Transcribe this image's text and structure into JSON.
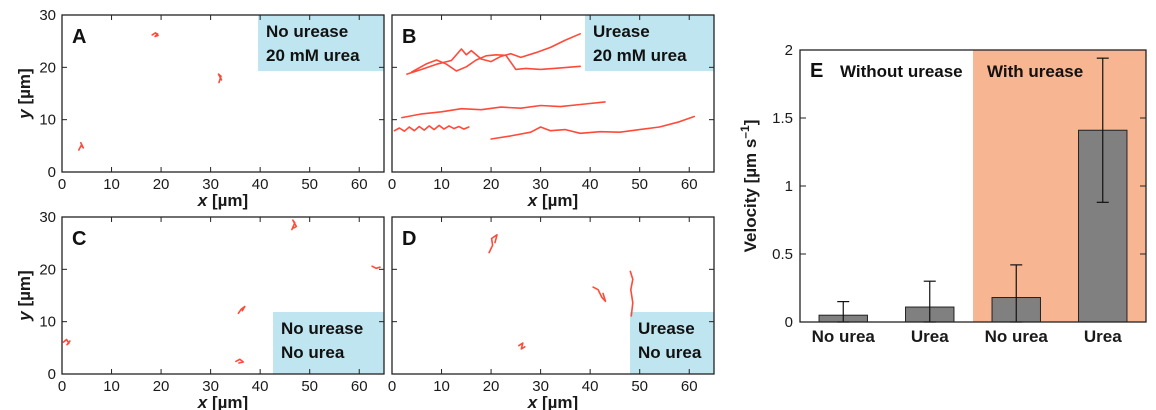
{
  "colors": {
    "trajectory": "#ff4a3a",
    "condition_box": "#bfe6f0",
    "with_urease_band": "#f8b592",
    "bar_fill": "#808080"
  },
  "chart_data": [
    {
      "id": "A",
      "type": "scatter",
      "panel_label": "A",
      "conditions": [
        "No urease",
        "20 mM urea"
      ],
      "xlabel_var": "x",
      "xlabel_unit": " [µm]",
      "ylabel_var": "y",
      "ylabel_unit": " [µm]",
      "show_xlabel": true,
      "show_ylabel": true,
      "xlim": [
        0,
        65
      ],
      "ylim": [
        0,
        30
      ],
      "xticks": [
        0,
        10,
        20,
        30,
        40,
        50,
        60
      ],
      "yticks": [
        0,
        10,
        20,
        30
      ],
      "tracks": [
        [
          [
            18.2,
            26.2
          ],
          [
            18.9,
            26.6
          ],
          [
            19.4,
            26.1
          ],
          [
            18.8,
            25.9
          ],
          [
            19.3,
            26.4
          ]
        ],
        [
          [
            31.7,
            17.1
          ],
          [
            32.1,
            18.3
          ],
          [
            31.6,
            18.7
          ],
          [
            32.2,
            17.6
          ],
          [
            31.9,
            18.1
          ]
        ],
        [
          [
            3.4,
            4.2
          ],
          [
            3.9,
            5.1
          ],
          [
            4.3,
            4.6
          ],
          [
            3.8,
            5.6
          ],
          [
            4.1,
            4.9
          ]
        ]
      ]
    },
    {
      "id": "B",
      "type": "scatter",
      "panel_label": "B",
      "conditions": [
        "Urease",
        "20 mM urea"
      ],
      "xlabel_var": "x",
      "xlabel_unit": " [µm]",
      "show_xlabel": true,
      "show_ylabel": false,
      "xlim": [
        0,
        65
      ],
      "ylim": [
        0,
        30
      ],
      "xticks": [
        0,
        10,
        20,
        30,
        40,
        50,
        60
      ],
      "yticks": [
        0,
        10,
        20,
        30
      ],
      "tracks": [
        [
          [
            3,
            18.7
          ],
          [
            6,
            19.6
          ],
          [
            9,
            20.6
          ],
          [
            12,
            21.3
          ],
          [
            14,
            23.5
          ],
          [
            15,
            22.4
          ],
          [
            16,
            23.2
          ],
          [
            18,
            21.6
          ],
          [
            20,
            21.1
          ],
          [
            22,
            22.1
          ],
          [
            24,
            22.6
          ],
          [
            26,
            21.9
          ],
          [
            29,
            22.8
          ],
          [
            32,
            23.8
          ],
          [
            35,
            25.2
          ],
          [
            38,
            26.4
          ]
        ],
        [
          [
            4,
            19.1
          ],
          [
            7,
            20.7
          ],
          [
            9,
            21.4
          ],
          [
            11,
            20.6
          ],
          [
            13,
            19.3
          ],
          [
            15,
            20.1
          ],
          [
            17,
            21.4
          ],
          [
            19,
            22.2
          ],
          [
            21,
            22.4
          ],
          [
            23,
            22.3
          ],
          [
            25,
            19.6
          ],
          [
            27,
            19.8
          ],
          [
            30,
            19.6
          ],
          [
            34,
            19.9
          ],
          [
            38,
            20.2
          ]
        ],
        [
          [
            2,
            10.4
          ],
          [
            6,
            11.1
          ],
          [
            10,
            11.5
          ],
          [
            14,
            12.1
          ],
          [
            18,
            11.9
          ],
          [
            22,
            12.4
          ],
          [
            26,
            12.2
          ],
          [
            30,
            12.7
          ],
          [
            34,
            12.5
          ],
          [
            38,
            12.9
          ],
          [
            43,
            13.4
          ]
        ],
        [
          [
            0.5,
            7.9
          ],
          [
            1.5,
            8.4
          ],
          [
            2.5,
            7.8
          ],
          [
            3.5,
            8.6
          ],
          [
            4.5,
            7.9
          ],
          [
            5.5,
            8.7
          ],
          [
            6.5,
            8.0
          ],
          [
            7.5,
            8.8
          ],
          [
            8.5,
            8.1
          ],
          [
            9.5,
            8.9
          ],
          [
            10.5,
            8.2
          ],
          [
            11.5,
            8.8
          ],
          [
            12.5,
            8.3
          ],
          [
            13.5,
            8.7
          ],
          [
            14.5,
            8.2
          ],
          [
            15.5,
            8.6
          ]
        ],
        [
          [
            20,
            6.3
          ],
          [
            24,
            6.9
          ],
          [
            28,
            7.6
          ],
          [
            30,
            8.6
          ],
          [
            32,
            7.9
          ],
          [
            35,
            8.1
          ],
          [
            38,
            7.4
          ],
          [
            42,
            7.7
          ],
          [
            46,
            7.6
          ],
          [
            50,
            8.1
          ],
          [
            54,
            8.6
          ],
          [
            58,
            9.6
          ],
          [
            61,
            10.6
          ]
        ]
      ]
    },
    {
      "id": "C",
      "type": "scatter",
      "panel_label": "C",
      "conditions": [
        "No urease",
        "No urea"
      ],
      "xlabel_var": "x",
      "xlabel_unit": " [µm]",
      "ylabel_var": "y",
      "ylabel_unit": " [µm]",
      "show_xlabel": true,
      "show_ylabel": true,
      "xlim": [
        0,
        65
      ],
      "ylim": [
        0,
        30
      ],
      "xticks": [
        0,
        10,
        20,
        30,
        40,
        50,
        60
      ],
      "yticks": [
        0,
        10,
        20,
        30
      ],
      "tracks": [
        [
          [
            0.3,
            6.1
          ],
          [
            0.9,
            6.6
          ],
          [
            1.4,
            5.9
          ],
          [
            1.0,
            5.6
          ],
          [
            1.6,
            6.3
          ]
        ],
        [
          [
            35.6,
            11.6
          ],
          [
            36.2,
            12.4
          ],
          [
            36.9,
            12.9
          ],
          [
            36.4,
            12.1
          ]
        ],
        [
          [
            35.1,
            2.4
          ],
          [
            35.9,
            2.8
          ],
          [
            36.6,
            2.3
          ],
          [
            35.7,
            2.1
          ]
        ],
        [
          [
            46.4,
            27.6
          ],
          [
            47.0,
            28.9
          ],
          [
            46.6,
            29.4
          ],
          [
            47.3,
            28.2
          ],
          [
            46.8,
            27.9
          ]
        ],
        [
          [
            62.6,
            20.6
          ],
          [
            63.4,
            20.2
          ],
          [
            64.2,
            20.4
          ]
        ]
      ]
    },
    {
      "id": "D",
      "type": "scatter",
      "panel_label": "D",
      "conditions": [
        "Urease",
        "No urea"
      ],
      "xlabel_var": "x",
      "xlabel_unit": " [µm]",
      "show_xlabel": true,
      "show_ylabel": false,
      "xlim": [
        0,
        65
      ],
      "ylim": [
        0,
        30
      ],
      "xticks": [
        0,
        10,
        20,
        30,
        40,
        50,
        60
      ],
      "yticks": [
        0,
        10,
        20,
        30
      ],
      "tracks": [
        [
          [
            19.6,
            23.2
          ],
          [
            20.3,
            24.6
          ],
          [
            20.1,
            25.9
          ],
          [
            21.2,
            26.6
          ],
          [
            20.8,
            25.1
          ]
        ],
        [
          [
            25.6,
            5.4
          ],
          [
            26.4,
            5.9
          ],
          [
            26.1,
            4.8
          ],
          [
            26.8,
            5.2
          ]
        ],
        [
          [
            40.6,
            16.6
          ],
          [
            41.6,
            16.1
          ],
          [
            42.4,
            14.6
          ],
          [
            43.1,
            13.9
          ],
          [
            42.6,
            15.4
          ]
        ],
        [
          [
            48.1,
            19.6
          ],
          [
            48.6,
            18.1
          ],
          [
            48.2,
            16.1
          ],
          [
            48.6,
            13.6
          ],
          [
            48.3,
            11.1
          ]
        ]
      ]
    },
    {
      "id": "E",
      "type": "bar",
      "panel_label": "E",
      "ylabel_text": "Velocity [µm s",
      "ylabel_sup": "–1",
      "ylabel_close": "]",
      "group_labels": [
        "Without urease",
        "With urease"
      ],
      "categories": [
        "No urea",
        "Urea",
        "No urea",
        "Urea"
      ],
      "values": [
        0.05,
        0.11,
        0.18,
        1.41
      ],
      "errors": [
        0.1,
        0.19,
        0.24,
        0.53
      ],
      "ylim": [
        0,
        2
      ],
      "yticks": [
        0,
        0.5,
        1,
        1.5,
        2
      ],
      "ytick_labels": [
        "0",
        "0.5",
        "1",
        "1.5",
        "2"
      ],
      "shaded_group": 1
    }
  ]
}
